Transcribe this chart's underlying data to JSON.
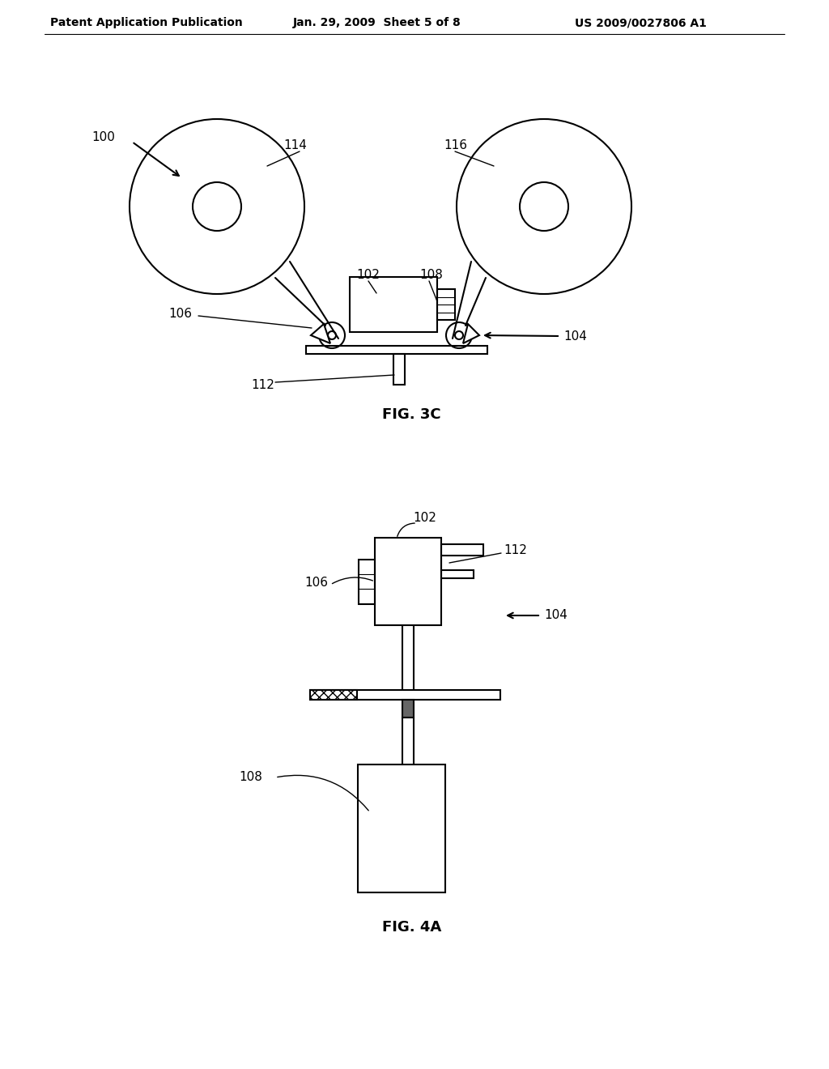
{
  "bg_color": "#ffffff",
  "line_color": "#000000",
  "header_left": "Patent Application Publication",
  "header_center": "Jan. 29, 2009  Sheet 5 of 8",
  "header_right": "US 2009/0027806 A1",
  "fig3c_label": "FIG. 3C",
  "fig4a_label": "FIG. 4A"
}
